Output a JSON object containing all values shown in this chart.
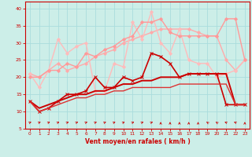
{
  "xlabel": "Vent moyen/en rafales ( km/h )",
  "background_color": "#cceee8",
  "grid_color": "#aadddd",
  "text_color": "#cc0000",
  "xlim": [
    -0.5,
    23.5
  ],
  "ylim": [
    5,
    42
  ],
  "yticks": [
    5,
    10,
    15,
    20,
    25,
    30,
    35,
    40
  ],
  "xticks": [
    0,
    1,
    2,
    3,
    4,
    5,
    6,
    7,
    8,
    9,
    10,
    11,
    12,
    13,
    14,
    15,
    16,
    17,
    18,
    19,
    20,
    21,
    22,
    23
  ],
  "series": [
    {
      "x": [
        0,
        1,
        2,
        3,
        4,
        5,
        6,
        7,
        8,
        9,
        10,
        11,
        12,
        13,
        14,
        15,
        16,
        17,
        18,
        19,
        20,
        21,
        22,
        23
      ],
      "y": [
        21,
        20,
        22,
        24,
        22,
        23,
        24,
        26,
        27,
        28,
        30,
        31,
        32,
        33,
        34,
        34,
        34,
        34,
        33,
        32,
        32,
        25,
        22,
        25
      ],
      "color": "#ffaaaa",
      "lw": 1.0,
      "marker": "D",
      "ms": 2.0
    },
    {
      "x": [
        0,
        1,
        2,
        3,
        4,
        5,
        6,
        7,
        8,
        9,
        10,
        11,
        12,
        13,
        14,
        15,
        16,
        17,
        18,
        19,
        20,
        21,
        22,
        23
      ],
      "y": [
        21,
        17,
        22,
        31,
        27,
        29,
        30,
        16,
        16,
        24,
        23,
        36,
        31,
        39,
        30,
        27,
        34,
        25,
        24,
        24,
        20,
        21,
        22,
        25
      ],
      "color": "#ffbbbb",
      "lw": 1.0,
      "marker": "D",
      "ms": 2.0
    },
    {
      "x": [
        0,
        1,
        2,
        3,
        4,
        5,
        6,
        7,
        8,
        9,
        10,
        11,
        12,
        13,
        14,
        15,
        16,
        17,
        18,
        19,
        20,
        21,
        22,
        23
      ],
      "y": [
        20,
        20,
        22,
        22,
        24,
        23,
        27,
        26,
        28,
        29,
        31,
        32,
        36,
        36,
        37,
        33,
        32,
        32,
        32,
        32,
        32,
        37,
        37,
        25
      ],
      "color": "#ff9999",
      "lw": 1.0,
      "marker": "D",
      "ms": 2.0
    },
    {
      "x": [
        0,
        1,
        2,
        3,
        4,
        5,
        6,
        7,
        8,
        9,
        10,
        11,
        12,
        13,
        14,
        15,
        16,
        17,
        18,
        19,
        20,
        21,
        22,
        23
      ],
      "y": [
        13,
        10,
        11,
        13,
        15,
        15,
        16,
        20,
        17,
        17,
        20,
        19,
        20,
        27,
        26,
        24,
        20,
        21,
        21,
        21,
        21,
        12,
        12,
        12
      ],
      "color": "#cc0000",
      "lw": 1.2,
      "marker": "x",
      "ms": 3.5
    },
    {
      "x": [
        0,
        1,
        2,
        3,
        4,
        5,
        6,
        7,
        8,
        9,
        10,
        11,
        12,
        13,
        14,
        15,
        16,
        17,
        18,
        19,
        20,
        21,
        22,
        23
      ],
      "y": [
        13,
        11,
        12,
        13,
        14,
        15,
        15,
        16,
        16,
        17,
        18,
        18,
        19,
        19,
        20,
        20,
        20,
        21,
        21,
        21,
        21,
        21,
        12,
        12
      ],
      "color": "#cc0000",
      "lw": 1.4,
      "marker": null,
      "ms": 0
    },
    {
      "x": [
        0,
        1,
        2,
        3,
        4,
        5,
        6,
        7,
        8,
        9,
        10,
        11,
        12,
        13,
        14,
        15,
        16,
        17,
        18,
        19,
        20,
        21,
        22,
        23
      ],
      "y": [
        13,
        10,
        11,
        12,
        13,
        14,
        14,
        15,
        15,
        16,
        16,
        17,
        17,
        17,
        17,
        17,
        18,
        18,
        18,
        18,
        18,
        18,
        12,
        12
      ],
      "color": "#dd3333",
      "lw": 1.0,
      "marker": null,
      "ms": 0
    }
  ],
  "arrow_angles": [
    45,
    45,
    45,
    45,
    45,
    45,
    45,
    45,
    45,
    45,
    45,
    45,
    45,
    45,
    0,
    0,
    0,
    0,
    0,
    -30,
    -30,
    -45,
    -45,
    0
  ]
}
